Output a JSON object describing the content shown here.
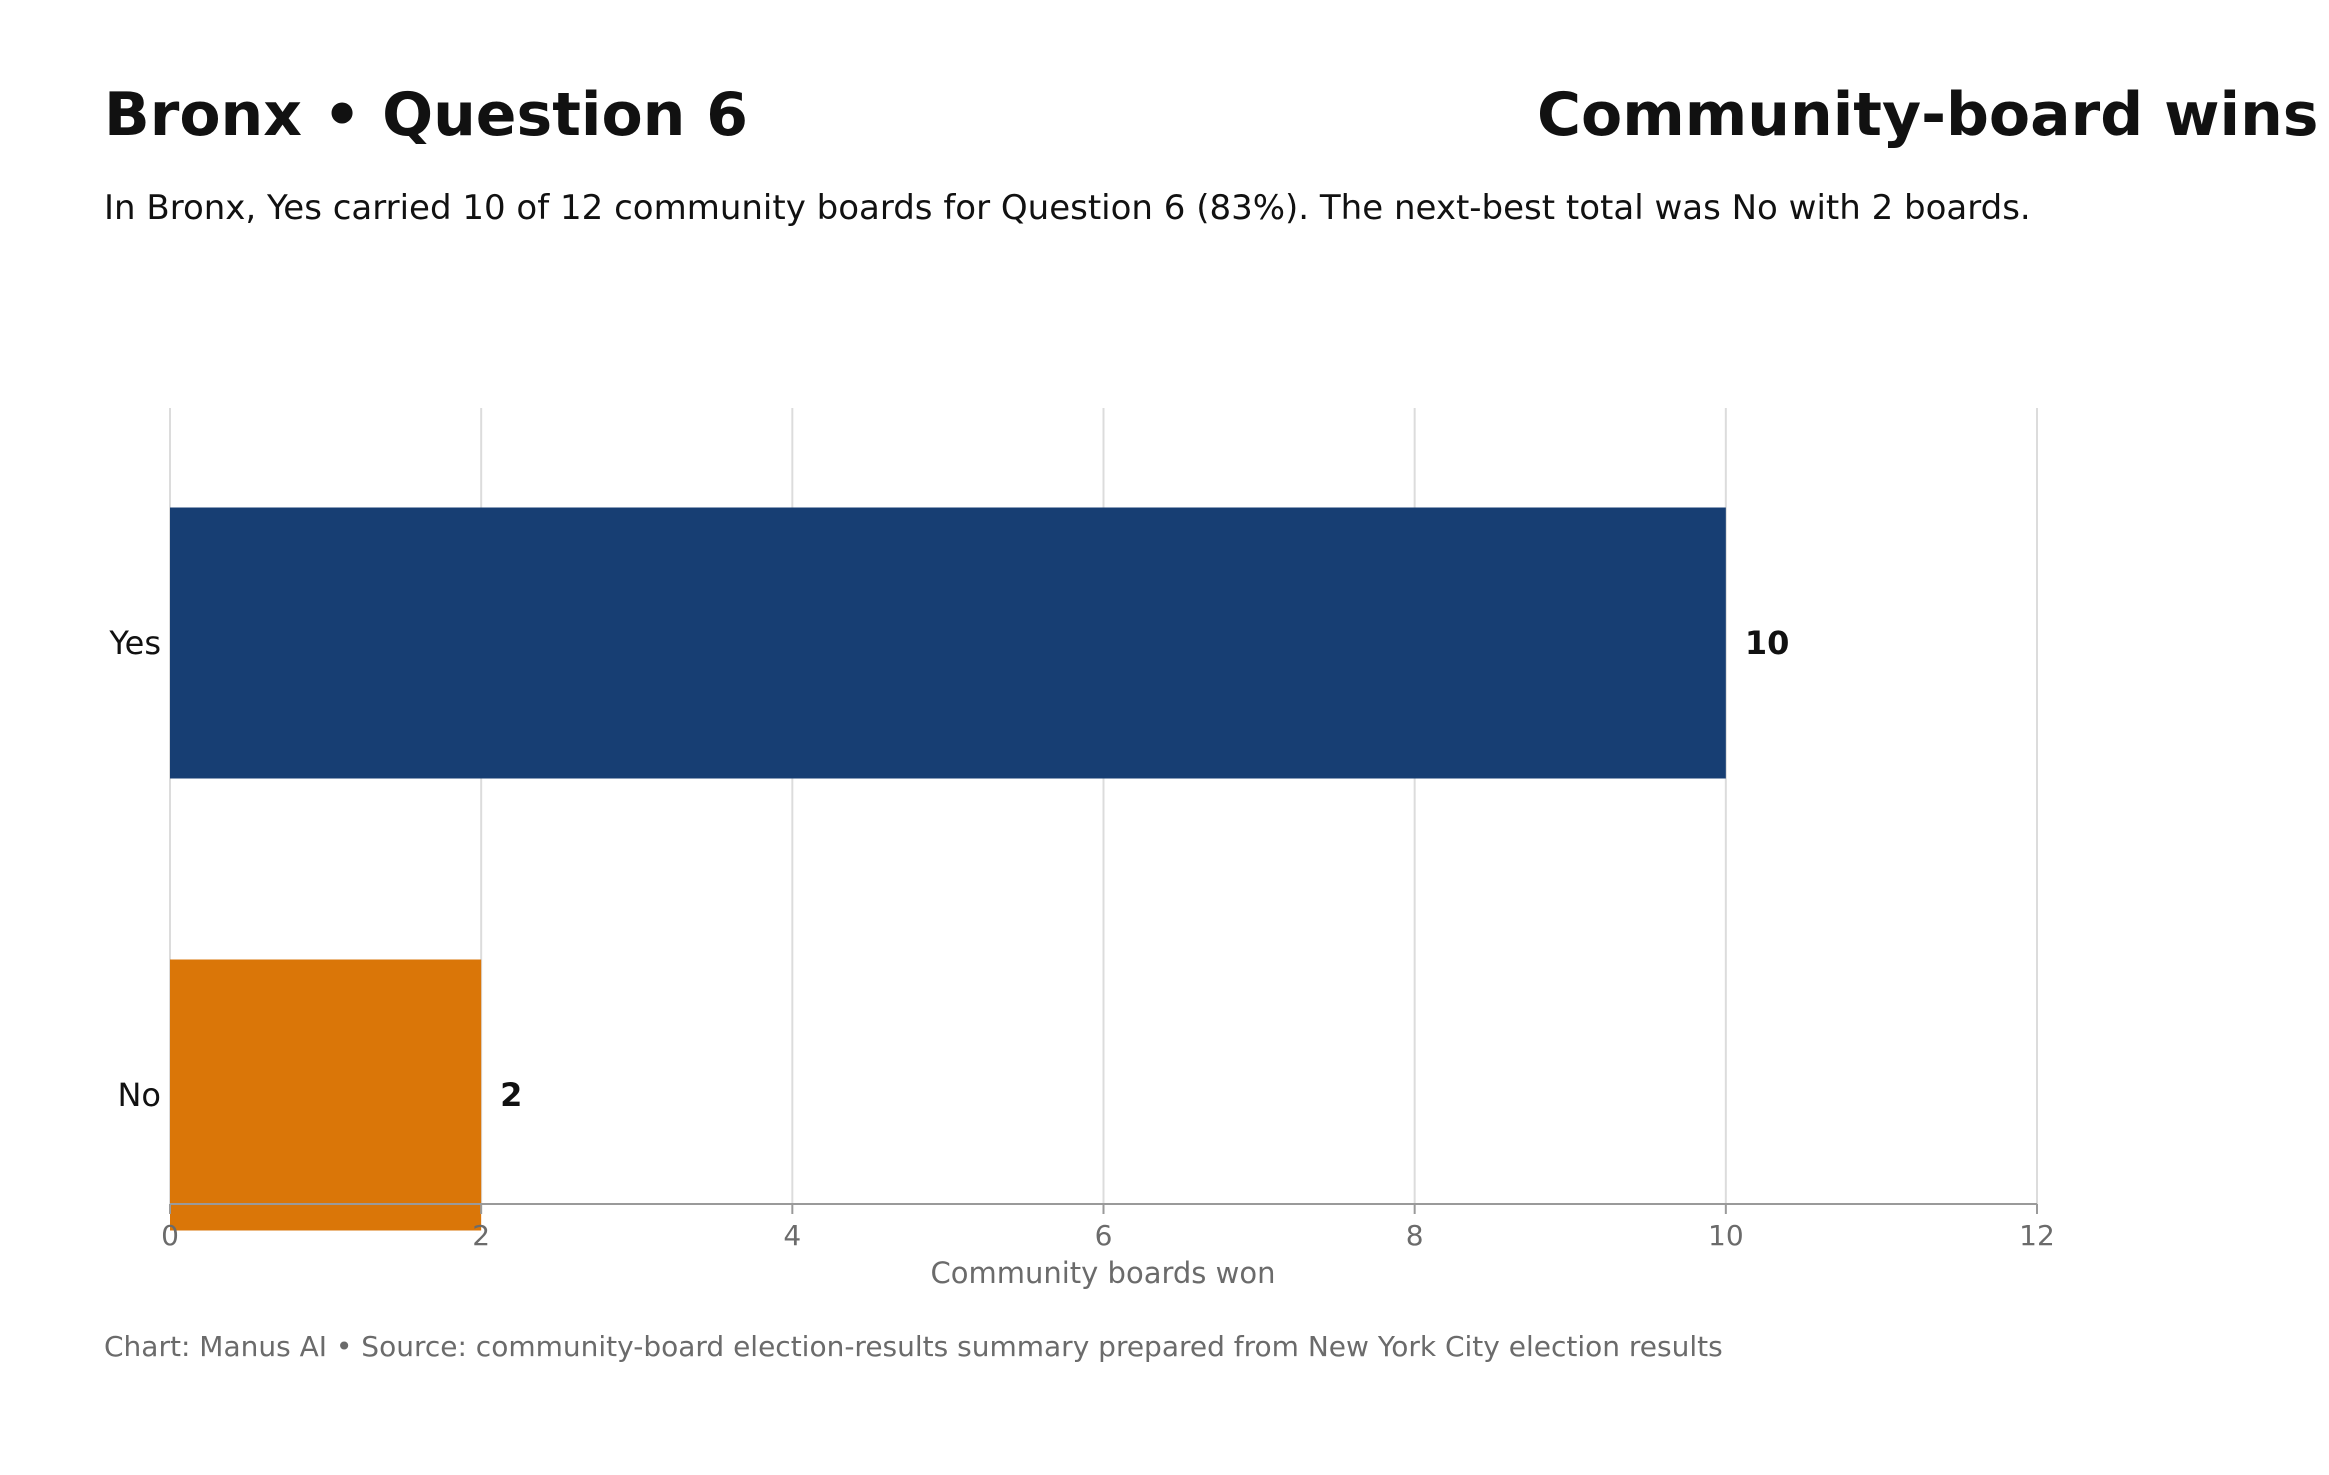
{
  "header": {
    "title": "Bronx • Question 6",
    "title_right": "Community-board wins",
    "subtitle": "In Bronx, Yes carried 10 of 12 community boards for Question 6 (83%). The next-best total was No with 2 boards."
  },
  "footer": {
    "source": "Chart: Manus AI • Source: community-board election-results summary prepared from New York City election results"
  },
  "chart_data": {
    "type": "bar",
    "orientation": "horizontal",
    "categories": [
      "Yes",
      "No"
    ],
    "values": [
      10,
      2
    ],
    "colors": [
      "#173e73",
      "#da7608"
    ],
    "xlabel": "Community boards won",
    "ylabel": "",
    "xlim": [
      0,
      12
    ],
    "xticks": [
      0,
      2,
      4,
      6,
      8,
      10,
      12
    ],
    "grid": true,
    "data_labels": [
      "10",
      "2"
    ]
  }
}
